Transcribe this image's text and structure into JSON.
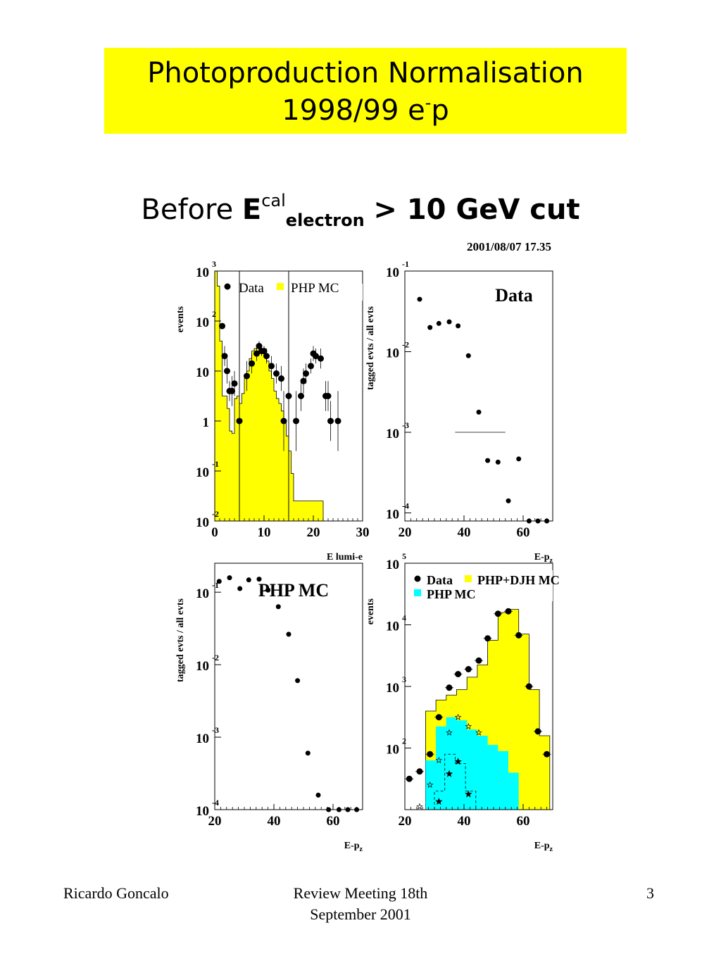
{
  "slide": {
    "title_line1": "Photoproduction Normalisation",
    "title_line2_base": "1998/99 e",
    "title_line2_sup": "-",
    "title_line2_tail": "p",
    "subtitle_before": "Before ",
    "subtitle_E": "E",
    "subtitle_sup": "cal",
    "subtitle_sub": "electron",
    "subtitle_after": "> 10 GeV cut",
    "datestamp": "2001/08/07   17.35",
    "footer_left": "Ricardo Goncalo",
    "footer_center_line1": "Review Meeting 18th",
    "footer_center_line2": "September 2001",
    "footer_right": "3",
    "colors": {
      "title_background": "#ffff00",
      "mc_fill": "#ffff00",
      "php_mc_fill": "#00ffff"
    }
  },
  "chart_data": [
    {
      "type": "bar",
      "xlabel": "E lumi-e",
      "ylabel": "events",
      "xlim": [
        0,
        30
      ],
      "ylim_log10": [
        -2,
        3
      ],
      "xticks": [
        0,
        10,
        20,
        30
      ],
      "yticks": [
        {
          "base": "10",
          "exp": "-2"
        },
        {
          "base": "10",
          "exp": "-1"
        },
        {
          "base": "1",
          "exp": ""
        },
        {
          "base": "10",
          "exp": ""
        },
        {
          "base": "10",
          "exp": "2"
        },
        {
          "base": "10",
          "exp": "3"
        }
      ],
      "legend": [
        {
          "label": "Data",
          "marker": "dot"
        },
        {
          "label": "PHP MC",
          "marker": "yellow-square"
        }
      ],
      "cut_lines_x": [
        5,
        15
      ],
      "mc_histogram": {
        "bin_width": 0.5,
        "x_start": 0,
        "log10_values": [
          3,
          2.7,
          1.6,
          0.5,
          0.5,
          0.25,
          -0.2,
          -0.25,
          0.45,
          0.5,
          0.35,
          0.55,
          0.85,
          1.0,
          1.25,
          1.4,
          1.45,
          1.5,
          1.5,
          1.4,
          1.35,
          1.2,
          1.0,
          0.85,
          0.6,
          0.45,
          0.35,
          0.2,
          0.0,
          -0.3,
          -0.6,
          -1.05,
          -1.6,
          -1.6,
          -1.6,
          -1.6,
          -1.6,
          -1.6,
          -1.6,
          -1.6,
          -1.6,
          -1.6,
          -1.6,
          -1.6
        ]
      },
      "data_points": [
        {
          "x": 1.5,
          "log10y": 1.9,
          "err": 0.0
        },
        {
          "x": 2.0,
          "log10y": 1.3,
          "err": 0.2
        },
        {
          "x": 2.5,
          "log10y": 1.0,
          "err": 0.25
        },
        {
          "x": 3.0,
          "log10y": 0.6,
          "err": 0.2
        },
        {
          "x": 3.5,
          "log10y": 0.6,
          "err": 0.3
        },
        {
          "x": 4.0,
          "log10y": 0.75,
          "err": 0.25
        },
        {
          "x": 5.0,
          "log10y": 0.0,
          "err": 0.6
        },
        {
          "x": 6.5,
          "log10y": 0.9,
          "err": 0.3
        },
        {
          "x": 7.5,
          "log10y": 1.15,
          "err": 0.2
        },
        {
          "x": 8.5,
          "log10y": 1.35,
          "err": 0.15
        },
        {
          "x": 9.0,
          "log10y": 1.5,
          "err": 0.1
        },
        {
          "x": 9.5,
          "log10y": 1.4,
          "err": 0.1
        },
        {
          "x": 10.0,
          "log10y": 1.4,
          "err": 0.1
        },
        {
          "x": 10.5,
          "log10y": 1.3,
          "err": 0.15
        },
        {
          "x": 11.5,
          "log10y": 1.1,
          "err": 0.2
        },
        {
          "x": 12.5,
          "log10y": 0.95,
          "err": 0.2
        },
        {
          "x": 13.5,
          "log10y": 0.85,
          "err": 0.25
        },
        {
          "x": 14.0,
          "log10y": 0.0,
          "err": 0.6
        },
        {
          "x": 15.0,
          "log10y": 0.5,
          "err": 0.3
        },
        {
          "x": 16.5,
          "log10y": 0.0,
          "err": 0.6
        },
        {
          "x": 17.5,
          "log10y": 0.5,
          "err": 0.3
        },
        {
          "x": 18.0,
          "log10y": 0.8,
          "err": 0.25
        },
        {
          "x": 18.5,
          "log10y": 0.95,
          "err": 0.2
        },
        {
          "x": 19.5,
          "log10y": 1.1,
          "err": 0.15
        },
        {
          "x": 20.0,
          "log10y": 1.35,
          "err": 0.15
        },
        {
          "x": 20.5,
          "log10y": 1.3,
          "err": 0.15
        },
        {
          "x": 21.5,
          "log10y": 1.25,
          "err": 0.2
        },
        {
          "x": 22.5,
          "log10y": 0.5,
          "err": 0.3
        },
        {
          "x": 23.0,
          "log10y": 0.5,
          "err": 0.3
        },
        {
          "x": 23.5,
          "log10y": 0.0,
          "err": 0.4
        },
        {
          "x": 25.0,
          "log10y": 0.0,
          "err": 0.6
        }
      ]
    },
    {
      "type": "scatter",
      "title": "Data",
      "xlabel": "E-p",
      "xlabel_sub": "z",
      "ylabel": "tagged evts / all evts",
      "xlim": [
        20,
        70
      ],
      "ylim_log10": [
        -4.1,
        -1
      ],
      "xticks": [
        20,
        40,
        60
      ],
      "yticks": [
        {
          "base": "10",
          "exp": "-1"
        },
        {
          "base": "10",
          "exp": "-2"
        },
        {
          "base": "10",
          "exp": "-3"
        },
        {
          "base": "10",
          "exp": "-4"
        }
      ],
      "points": [
        {
          "x": 25,
          "log10y": -1.35
        },
        {
          "x": 28.5,
          "log10y": -1.7
        },
        {
          "x": 31.5,
          "log10y": -1.65
        },
        {
          "x": 35,
          "log10y": -1.63
        },
        {
          "x": 38,
          "log10y": -1.68
        },
        {
          "x": 41.5,
          "log10y": -2.05
        },
        {
          "x": 45,
          "log10y": -2.75
        },
        {
          "x": 48,
          "log10y": -3.35
        },
        {
          "x": 51.5,
          "log10y": -3.37
        },
        {
          "x": 55,
          "log10y": -3.85
        },
        {
          "x": 58.5,
          "log10y": -3.33
        },
        {
          "x": 62,
          "log10y": -4.1
        },
        {
          "x": 65,
          "log10y": -4.1
        },
        {
          "x": 68,
          "log10y": -4.1
        }
      ],
      "horizontal_line": {
        "x_from": 37,
        "x_to": 54,
        "log10y": -3.0
      }
    },
    {
      "type": "scatter",
      "title": "PHP MC",
      "xlabel": "E-p",
      "xlabel_sub": "z",
      "ylabel": "tagged evts / all evts",
      "xlim": [
        20,
        70
      ],
      "ylim_log10": [
        -4,
        -0.6
      ],
      "xticks": [
        20,
        40,
        60
      ],
      "yticks": [
        {
          "base": "10",
          "exp": "-1"
        },
        {
          "base": "10",
          "exp": "-2"
        },
        {
          "base": "10",
          "exp": "-3"
        },
        {
          "base": "10",
          "exp": "-4"
        }
      ],
      "points": [
        {
          "x": 21.5,
          "log10y": -0.85
        },
        {
          "x": 25,
          "log10y": -0.8
        },
        {
          "x": 28.5,
          "log10y": -0.95
        },
        {
          "x": 31.5,
          "log10y": -0.83
        },
        {
          "x": 35,
          "log10y": -0.82
        },
        {
          "x": 38,
          "log10y": -0.97
        },
        {
          "x": 41.5,
          "log10y": -1.2
        },
        {
          "x": 45,
          "log10y": -1.58
        },
        {
          "x": 48,
          "log10y": -2.22
        },
        {
          "x": 51.5,
          "log10y": -3.22
        },
        {
          "x": 55,
          "log10y": -3.8
        },
        {
          "x": 58.5,
          "log10y": -4.0
        },
        {
          "x": 62,
          "log10y": -4.0
        },
        {
          "x": 65,
          "log10y": -4.0
        },
        {
          "x": 68,
          "log10y": -4.0
        }
      ]
    },
    {
      "type": "bar",
      "xlabel": "E-p",
      "xlabel_sub": "z",
      "ylabel": "events",
      "xlim": [
        20,
        70
      ],
      "ylim_log10": [
        1,
        5
      ],
      "xticks": [
        20,
        40,
        60
      ],
      "yticks": [
        {
          "base": "10",
          "exp": "5"
        },
        {
          "base": "10",
          "exp": "4"
        },
        {
          "base": "10",
          "exp": "3"
        },
        {
          "base": "10",
          "exp": "2"
        }
      ],
      "legend": [
        {
          "label": "Data",
          "marker": "dot"
        },
        {
          "label": "PHP+DJH MC",
          "marker": "yellow-square"
        },
        {
          "label": "PHP MC",
          "marker": "cyan-square"
        }
      ],
      "bin_edges": [
        20,
        23.5,
        27,
        30.5,
        34,
        37.5,
        41,
        44.5,
        48,
        51.5,
        55,
        58.5,
        62,
        65.5,
        69
      ],
      "php_djh_mc_log10": [
        1,
        1,
        2.6,
        2.78,
        2.86,
        2.95,
        3.15,
        3.35,
        3.75,
        4.2,
        4.25,
        3.85,
        2.95,
        2.2
      ],
      "php_mc_log10": [
        1,
        1,
        1.8,
        2.35,
        2.5,
        2.45,
        2.3,
        2.2,
        2.05,
        1.95,
        1.6,
        1,
        1,
        1
      ],
      "data_points": [
        {
          "x": 21.5,
          "log10y": 1.5
        },
        {
          "x": 25,
          "log10y": 1.62
        },
        {
          "x": 28.5,
          "log10y": 1.9
        },
        {
          "x": 31.5,
          "log10y": 2.5
        },
        {
          "x": 35,
          "log10y": 2.98
        },
        {
          "x": 38,
          "log10y": 3.2
        },
        {
          "x": 41.5,
          "log10y": 3.28
        },
        {
          "x": 45,
          "log10y": 3.42
        },
        {
          "x": 48,
          "log10y": 3.78
        },
        {
          "x": 51.5,
          "log10y": 4.18
        },
        {
          "x": 55,
          "log10y": 4.22
        },
        {
          "x": 58.5,
          "log10y": 3.83
        },
        {
          "x": 62,
          "log10y": 3.0
        },
        {
          "x": 65,
          "log10y": 2.27
        },
        {
          "x": 68,
          "log10y": 1.9
        }
      ],
      "php_mc_star_points": [
        {
          "x": 25,
          "log10y": 1.05
        },
        {
          "x": 28.5,
          "log10y": 1.4
        },
        {
          "x": 31.5,
          "log10y": 1.8
        },
        {
          "x": 35,
          "log10y": 2.25
        },
        {
          "x": 38,
          "log10y": 2.5
        },
        {
          "x": 41.5,
          "log10y": 2.35
        },
        {
          "x": 45,
          "log10y": 2.25
        }
      ],
      "djh_star_points": [
        {
          "x": 31.5,
          "log10y": 1.13
        },
        {
          "x": 35,
          "log10y": 1.58
        },
        {
          "x": 38,
          "log10y": 1.78
        },
        {
          "x": 41.5,
          "log10y": 1.25
        }
      ],
      "djh_dashed_histogram": {
        "bin_edges": [
          30,
          33.5,
          37,
          40.5,
          44,
          47.5
        ],
        "log10_values": [
          1.3,
          1.9,
          1.75,
          1.3,
          1.0
        ]
      }
    }
  ]
}
